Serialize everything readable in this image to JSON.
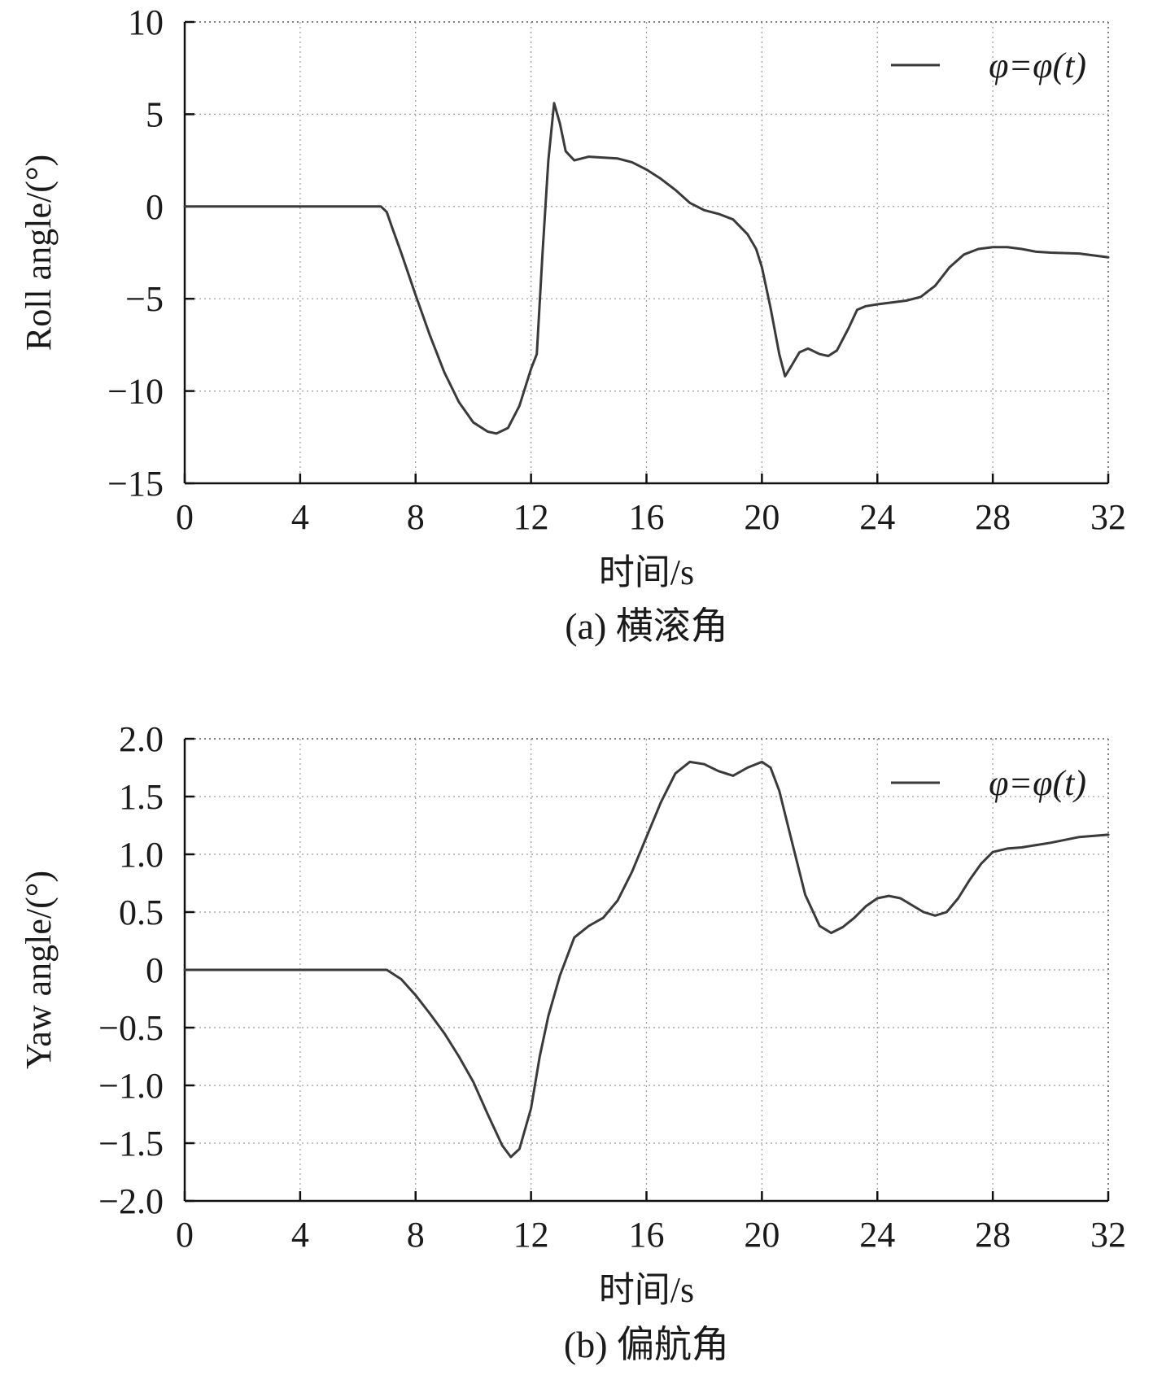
{
  "chart_data": [
    {
      "type": "line",
      "caption": "(a) 横滚角",
      "xlabel": "时间/s",
      "ylabel": "Roll angle/(°)",
      "xlim": [
        0,
        32
      ],
      "ylim": [
        -15,
        10
      ],
      "xticks": [
        "0",
        "4",
        "8",
        "12",
        "16",
        "20",
        "24",
        "28",
        "32"
      ],
      "yticks": [
        "10",
        "5",
        "0",
        "−5",
        "−10",
        "−15"
      ],
      "grid": true,
      "grid_style": "dotted",
      "legend_position": "top-right",
      "line_color": "#3a3a3a",
      "series": [
        {
          "name": "φ=φ(t)",
          "x": [
            0,
            1,
            2,
            3,
            4,
            5,
            6,
            6.8,
            7.0,
            7.2,
            7.5,
            8,
            8.5,
            9,
            9.5,
            10,
            10.5,
            10.8,
            11.2,
            11.6,
            12,
            12.2,
            12.4,
            12.6,
            12.8,
            13,
            13.2,
            13.5,
            14,
            15,
            15.5,
            16,
            16.5,
            17,
            17.5,
            18,
            18.5,
            19,
            19.5,
            19.8,
            20,
            20.3,
            20.6,
            20.8,
            21.0,
            21.3,
            21.6,
            22,
            22.3,
            22.6,
            23,
            23.3,
            23.6,
            24,
            25,
            25.5,
            26,
            26.5,
            27,
            27.5,
            28,
            28.5,
            29,
            29.5,
            30,
            31,
            32
          ],
          "y": [
            0,
            0,
            0,
            0,
            0,
            0,
            0,
            0,
            -0.3,
            -1.2,
            -2.5,
            -4.8,
            -7.0,
            -9.0,
            -10.6,
            -11.7,
            -12.2,
            -12.3,
            -12.0,
            -10.8,
            -8.8,
            -8.0,
            -2.5,
            2.5,
            5.6,
            4.5,
            3.0,
            2.5,
            2.7,
            2.6,
            2.4,
            2.0,
            1.5,
            0.9,
            0.2,
            -0.2,
            -0.4,
            -0.7,
            -1.5,
            -2.3,
            -3.3,
            -5.5,
            -8.0,
            -9.2,
            -8.7,
            -7.9,
            -7.7,
            -8.0,
            -8.1,
            -7.8,
            -6.6,
            -5.6,
            -5.4,
            -5.3,
            -5.1,
            -4.9,
            -4.3,
            -3.3,
            -2.6,
            -2.3,
            -2.2,
            -2.2,
            -2.3,
            -2.45,
            -2.5,
            -2.55,
            -2.75
          ]
        }
      ]
    },
    {
      "type": "line",
      "caption": "(b) 偏航角",
      "xlabel": "时间/s",
      "ylabel": "Yaw angle/(°)",
      "xlim": [
        0,
        32
      ],
      "ylim": [
        -2.0,
        2.0
      ],
      "xticks": [
        "0",
        "4",
        "8",
        "12",
        "16",
        "20",
        "24",
        "28",
        "32"
      ],
      "yticks": [
        "2.0",
        "1.5",
        "1.0",
        "0.5",
        "0",
        "−0.5",
        "−1.0",
        "−1.5",
        "−2.0"
      ],
      "grid": true,
      "grid_style": "dotted",
      "legend_position": "top-right",
      "line_color": "#3a3a3a",
      "series": [
        {
          "name": "φ=φ(t)",
          "x": [
            0,
            1,
            2,
            3,
            4,
            5,
            6,
            6.8,
            7.0,
            7.5,
            8,
            8.5,
            9,
            9.5,
            10,
            10.5,
            11,
            11.3,
            11.6,
            12,
            12.3,
            12.6,
            13,
            13.5,
            14,
            14.5,
            15,
            15.5,
            16,
            16.5,
            17,
            17.5,
            18,
            18.5,
            19,
            19.5,
            20,
            20.3,
            20.6,
            21,
            21.5,
            22,
            22.4,
            22.8,
            23.2,
            23.6,
            24,
            24.4,
            24.8,
            25.2,
            25.6,
            26,
            26.4,
            26.8,
            27.2,
            27.6,
            28,
            28.5,
            29,
            30,
            31,
            32
          ],
          "y": [
            0,
            0,
            0,
            0,
            0,
            0,
            0,
            0,
            0,
            -0.08,
            -0.22,
            -0.38,
            -0.55,
            -0.75,
            -0.97,
            -1.25,
            -1.52,
            -1.62,
            -1.55,
            -1.2,
            -0.75,
            -0.4,
            -0.05,
            0.28,
            0.38,
            0.45,
            0.6,
            0.85,
            1.15,
            1.45,
            1.7,
            1.8,
            1.78,
            1.72,
            1.68,
            1.75,
            1.8,
            1.75,
            1.55,
            1.15,
            0.65,
            0.38,
            0.32,
            0.37,
            0.45,
            0.55,
            0.62,
            0.64,
            0.62,
            0.56,
            0.5,
            0.47,
            0.5,
            0.62,
            0.78,
            0.92,
            1.02,
            1.05,
            1.06,
            1.1,
            1.15,
            1.17
          ]
        }
      ]
    }
  ]
}
